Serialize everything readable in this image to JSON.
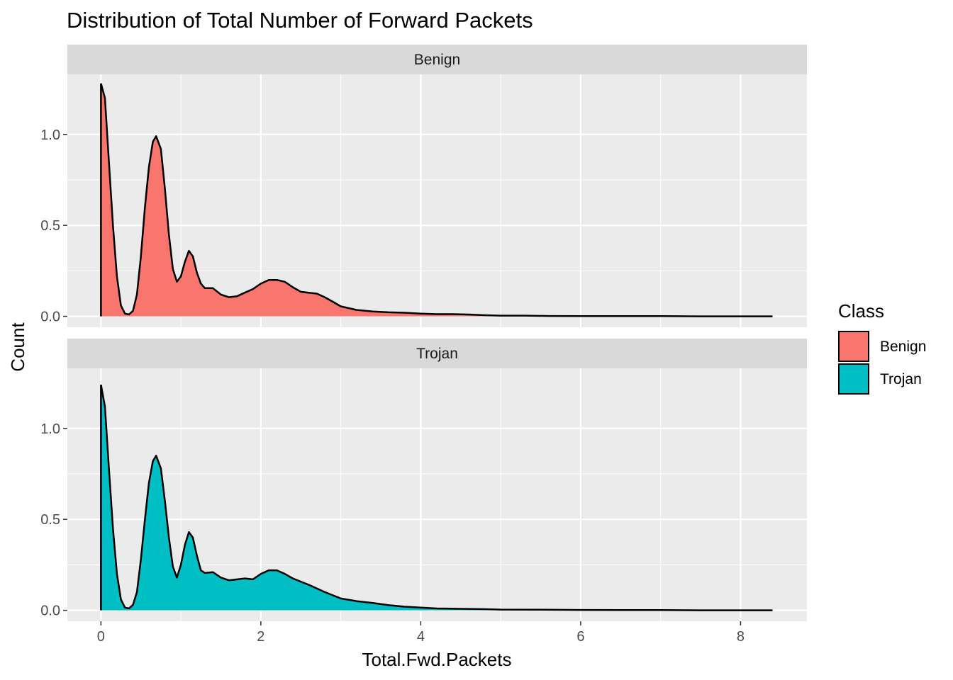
{
  "chart_data": {
    "type": "area",
    "title": "Distribution of Total Number of Forward Packets",
    "xlabel": "Total.Fwd.Packets",
    "ylabel": "Count",
    "xlim": [
      -0.42,
      8.83
    ],
    "ylim": [
      -0.06,
      1.33
    ],
    "x_ticks": [
      0,
      2,
      4,
      6,
      8
    ],
    "x_tick_labels": [
      "0",
      "2",
      "4",
      "6",
      "8"
    ],
    "y_ticks": [
      0.0,
      0.5,
      1.0
    ],
    "y_tick_labels": [
      "0.0",
      "0.5",
      "1.0"
    ],
    "grid": true,
    "legend": {
      "title": "Class",
      "position": "right",
      "entries": [
        {
          "label": "Benign",
          "color": "#F8766D"
        },
        {
          "label": "Trojan",
          "color": "#00BFC4"
        }
      ]
    },
    "facets": [
      {
        "label": "Benign",
        "color": "#F8766D",
        "points": [
          [
            0.0,
            1.28
          ],
          [
            0.05,
            1.2
          ],
          [
            0.1,
            0.85
          ],
          [
            0.15,
            0.5
          ],
          [
            0.2,
            0.22
          ],
          [
            0.25,
            0.06
          ],
          [
            0.3,
            0.015
          ],
          [
            0.35,
            0.01
          ],
          [
            0.4,
            0.03
          ],
          [
            0.45,
            0.12
          ],
          [
            0.5,
            0.33
          ],
          [
            0.55,
            0.6
          ],
          [
            0.6,
            0.82
          ],
          [
            0.65,
            0.96
          ],
          [
            0.69,
            0.99
          ],
          [
            0.75,
            0.92
          ],
          [
            0.8,
            0.7
          ],
          [
            0.85,
            0.45
          ],
          [
            0.9,
            0.26
          ],
          [
            0.95,
            0.19
          ],
          [
            1.0,
            0.22
          ],
          [
            1.05,
            0.3
          ],
          [
            1.1,
            0.36
          ],
          [
            1.15,
            0.33
          ],
          [
            1.2,
            0.24
          ],
          [
            1.25,
            0.18
          ],
          [
            1.3,
            0.155
          ],
          [
            1.4,
            0.155
          ],
          [
            1.5,
            0.12
          ],
          [
            1.6,
            0.105
          ],
          [
            1.7,
            0.11
          ],
          [
            1.8,
            0.13
          ],
          [
            1.9,
            0.15
          ],
          [
            2.0,
            0.18
          ],
          [
            2.1,
            0.2
          ],
          [
            2.2,
            0.2
          ],
          [
            2.3,
            0.19
          ],
          [
            2.4,
            0.16
          ],
          [
            2.5,
            0.135
          ],
          [
            2.6,
            0.13
          ],
          [
            2.7,
            0.125
          ],
          [
            2.8,
            0.105
          ],
          [
            2.9,
            0.08
          ],
          [
            3.0,
            0.055
          ],
          [
            3.2,
            0.035
          ],
          [
            3.4,
            0.027
          ],
          [
            3.6,
            0.022
          ],
          [
            3.8,
            0.02
          ],
          [
            4.0,
            0.015
          ],
          [
            4.2,
            0.012
          ],
          [
            4.4,
            0.012
          ],
          [
            4.6,
            0.01
          ],
          [
            4.8,
            0.006
          ],
          [
            5.0,
            0.004
          ],
          [
            5.3,
            0.004
          ],
          [
            5.6,
            0.002
          ],
          [
            6.0,
            0.001
          ],
          [
            6.5,
            0.001
          ],
          [
            7.0,
            0.001
          ],
          [
            7.5,
            0.0
          ],
          [
            8.0,
            0.0
          ],
          [
            8.4,
            0.0
          ]
        ]
      },
      {
        "label": "Trojan",
        "color": "#00BFC4",
        "points": [
          [
            0.0,
            1.24
          ],
          [
            0.05,
            1.12
          ],
          [
            0.1,
            0.78
          ],
          [
            0.15,
            0.45
          ],
          [
            0.2,
            0.2
          ],
          [
            0.25,
            0.06
          ],
          [
            0.3,
            0.015
          ],
          [
            0.35,
            0.01
          ],
          [
            0.4,
            0.03
          ],
          [
            0.45,
            0.1
          ],
          [
            0.5,
            0.28
          ],
          [
            0.55,
            0.5
          ],
          [
            0.6,
            0.7
          ],
          [
            0.65,
            0.82
          ],
          [
            0.69,
            0.85
          ],
          [
            0.75,
            0.78
          ],
          [
            0.8,
            0.6
          ],
          [
            0.85,
            0.4
          ],
          [
            0.9,
            0.24
          ],
          [
            0.95,
            0.18
          ],
          [
            1.0,
            0.25
          ],
          [
            1.05,
            0.36
          ],
          [
            1.1,
            0.43
          ],
          [
            1.15,
            0.4
          ],
          [
            1.2,
            0.3
          ],
          [
            1.25,
            0.22
          ],
          [
            1.3,
            0.205
          ],
          [
            1.4,
            0.21
          ],
          [
            1.5,
            0.18
          ],
          [
            1.6,
            0.165
          ],
          [
            1.8,
            0.175
          ],
          [
            1.9,
            0.17
          ],
          [
            2.0,
            0.2
          ],
          [
            2.1,
            0.22
          ],
          [
            2.2,
            0.22
          ],
          [
            2.3,
            0.2
          ],
          [
            2.4,
            0.175
          ],
          [
            2.6,
            0.14
          ],
          [
            2.8,
            0.1
          ],
          [
            3.0,
            0.065
          ],
          [
            3.2,
            0.05
          ],
          [
            3.4,
            0.04
          ],
          [
            3.6,
            0.028
          ],
          [
            3.8,
            0.02
          ],
          [
            4.0,
            0.015
          ],
          [
            4.2,
            0.01
          ],
          [
            4.5,
            0.008
          ],
          [
            4.8,
            0.006
          ],
          [
            5.0,
            0.004
          ],
          [
            5.5,
            0.003
          ],
          [
            6.0,
            0.002
          ],
          [
            6.5,
            0.001
          ],
          [
            7.0,
            0.001
          ],
          [
            7.5,
            0.0
          ],
          [
            8.0,
            0.0
          ],
          [
            8.4,
            0.0
          ]
        ]
      }
    ]
  }
}
